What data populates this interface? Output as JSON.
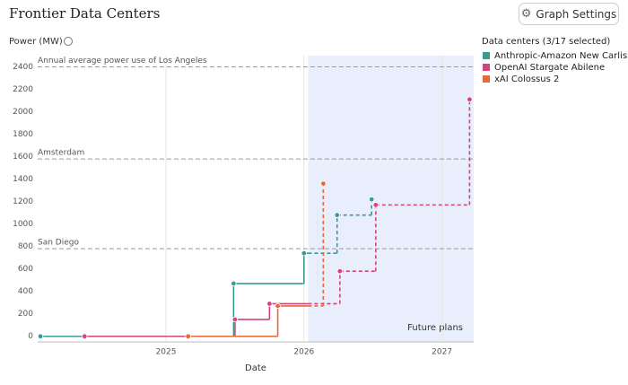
{
  "chart_data": {
    "type": "step",
    "title": "Frontier Data Centers",
    "settings_button": "Graph Settings",
    "y_label": "Power (MW)",
    "x_label": "Date",
    "legend_title": "Data centers (3/17 selected)",
    "future_label": "Future plans",
    "future_start": 2026.03,
    "xlim": [
      2024.07,
      2027.23
    ],
    "xticks": [
      2025,
      2026,
      2027
    ],
    "ylim": [
      -50,
      2500
    ],
    "yticks": [
      0,
      200,
      400,
      600,
      800,
      1000,
      1200,
      1400,
      1600,
      1800,
      2000,
      2200,
      2400
    ],
    "reference_lines": [
      {
        "label": "Annual average power use of Los Angeles",
        "value": 2400
      },
      {
        "label": "Amsterdam",
        "value": 1580
      },
      {
        "label": "San Diego",
        "value": 780
      }
    ],
    "series": [
      {
        "name": "Anthropic-Amazon New Carlisle",
        "color": "#3a9a94",
        "x": [
          2024.09,
          2025.49,
          2026.0,
          2026.24,
          2026.49
        ],
        "values": [
          0,
          470,
          740,
          1080,
          1220
        ]
      },
      {
        "name": "OpenAI Stargate Abilene",
        "color": "#d2437f",
        "x": [
          2024.41,
          2025.5,
          2025.75,
          2026.26,
          2026.52,
          2027.2
        ],
        "values": [
          0,
          150,
          290,
          580,
          1170,
          2110
        ]
      },
      {
        "name": "xAI Colossus 2",
        "color": "#e5683c",
        "x": [
          2025.16,
          2025.81,
          2026.14
        ],
        "values": [
          0,
          270,
          1360
        ]
      }
    ]
  }
}
